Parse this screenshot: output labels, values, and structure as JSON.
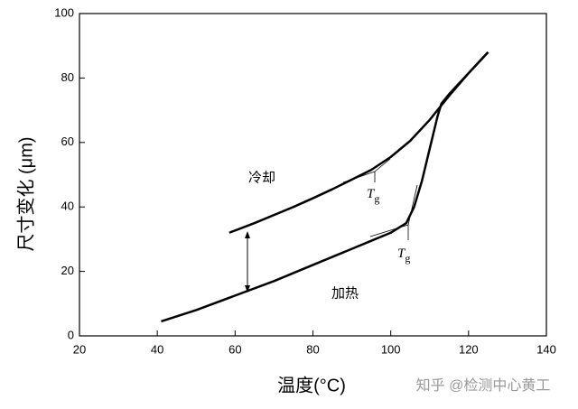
{
  "chart_data": {
    "type": "line",
    "xlabel": "温度(°C)",
    "ylabel": "尺寸变化 (μm)",
    "xlim": [
      20,
      140
    ],
    "xticks": [
      20,
      40,
      60,
      80,
      100,
      120,
      140
    ],
    "ylim": [
      0,
      100
    ],
    "yticks": [
      0,
      20,
      40,
      60,
      80,
      100
    ],
    "series": [
      {
        "name": "冷却",
        "color": "#000000",
        "x": [
          58.5,
          65,
          70,
          75,
          80,
          85,
          90,
          95,
          100,
          105,
          110,
          115,
          120,
          125
        ],
        "values": [
          32,
          35,
          37.5,
          40,
          42.7,
          45.5,
          48.5,
          51.5,
          55.5,
          60.5,
          67,
          74.5,
          81.5,
          88
        ]
      },
      {
        "name": "加热",
        "color": "#000000",
        "x": [
          41,
          50,
          60,
          70,
          80,
          90,
          95,
          100,
          104,
          106,
          108,
          110,
          112,
          113,
          115,
          120,
          125
        ],
        "values": [
          4.5,
          8,
          12.5,
          17,
          22,
          27,
          29.5,
          32,
          35,
          40,
          48,
          58,
          68,
          72,
          75,
          81.5,
          88
        ]
      }
    ],
    "tg_labels": [
      {
        "text": "T",
        "sub": "g"
      },
      {
        "text": "T",
        "sub": "g"
      }
    ],
    "watermark": "知乎 @检测中心黄工"
  }
}
